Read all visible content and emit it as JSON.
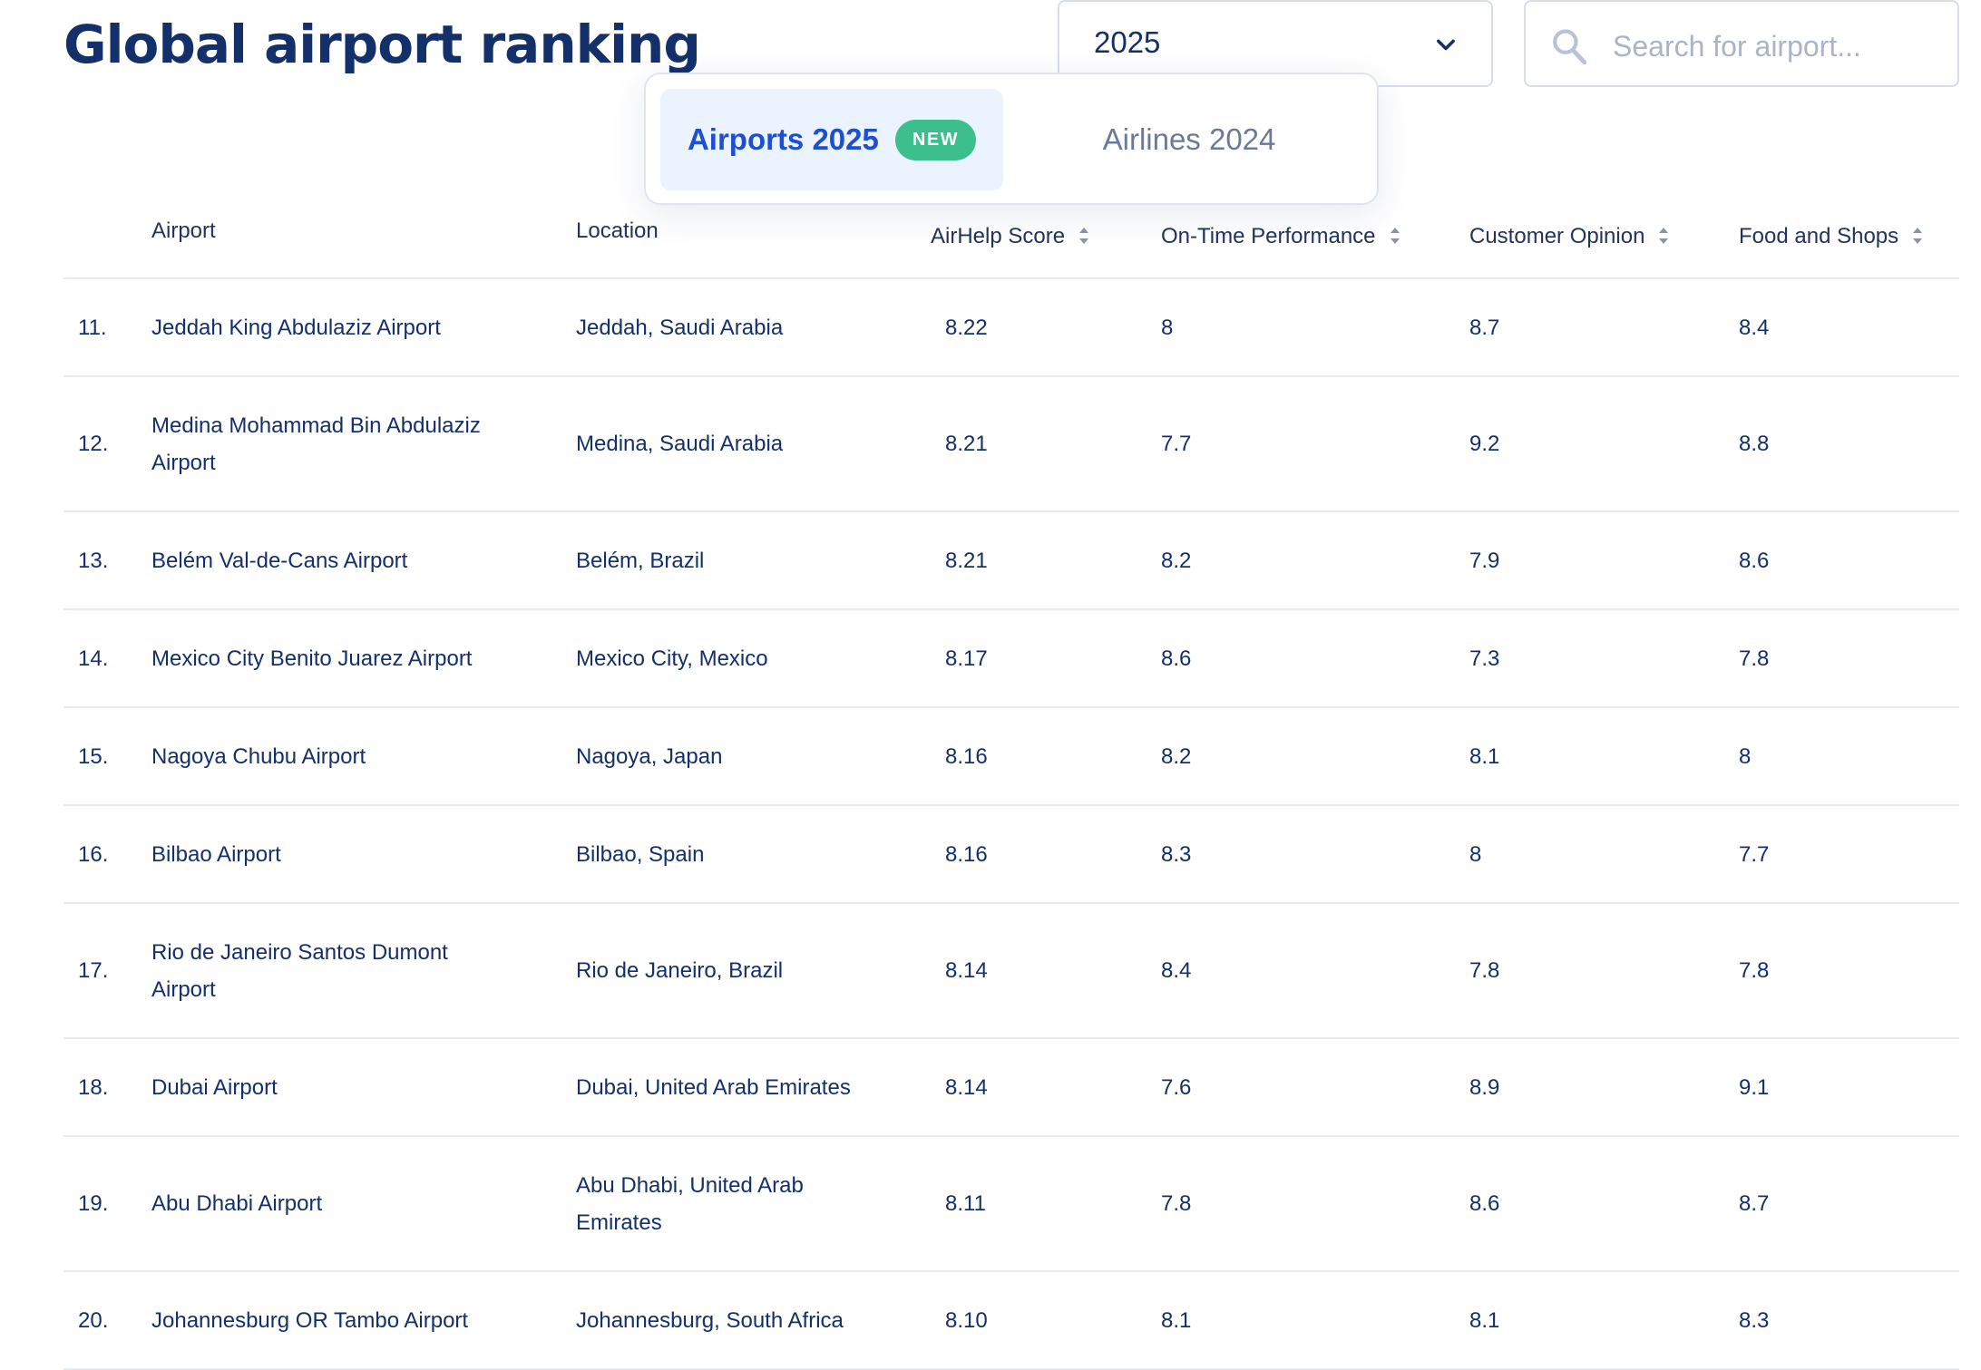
{
  "page": {
    "title": "Global airport ranking"
  },
  "year_select": {
    "value": "2025"
  },
  "search": {
    "placeholder": "Search for airport..."
  },
  "tabs": [
    {
      "label": "Airports 2025",
      "badge": "NEW",
      "active": true
    },
    {
      "label": "Airlines 2024",
      "active": false
    }
  ],
  "table": {
    "columns": [
      "Airport",
      "Location",
      "AirHelp Score",
      "On-Time Performance",
      "Customer Opinion",
      "Food and Shops"
    ],
    "rows": [
      {
        "rank": "11.",
        "airport": "Jeddah King Abdulaziz Airport",
        "location": "Jeddah, Saudi Arabia",
        "score": "8.22",
        "on_time": "8",
        "opinion": "8.7",
        "food": "8.4"
      },
      {
        "rank": "12.",
        "airport": "Medina Mohammad Bin Abdulaziz Airport",
        "location": "Medina, Saudi Arabia",
        "score": "8.21",
        "on_time": "7.7",
        "opinion": "9.2",
        "food": "8.8"
      },
      {
        "rank": "13.",
        "airport": "Belém Val-de-Cans Airport",
        "location": "Belém, Brazil",
        "score": "8.21",
        "on_time": "8.2",
        "opinion": "7.9",
        "food": "8.6"
      },
      {
        "rank": "14.",
        "airport": "Mexico City Benito Juarez Airport",
        "location": "Mexico City, Mexico",
        "score": "8.17",
        "on_time": "8.6",
        "opinion": "7.3",
        "food": "7.8"
      },
      {
        "rank": "15.",
        "airport": "Nagoya Chubu Airport",
        "location": "Nagoya, Japan",
        "score": "8.16",
        "on_time": "8.2",
        "opinion": "8.1",
        "food": "8"
      },
      {
        "rank": "16.",
        "airport": "Bilbao Airport",
        "location": "Bilbao, Spain",
        "score": "8.16",
        "on_time": "8.3",
        "opinion": "8",
        "food": "7.7"
      },
      {
        "rank": "17.",
        "airport": "Rio de Janeiro Santos Dumont Airport",
        "location": "Rio de Janeiro, Brazil",
        "score": "8.14",
        "on_time": "8.4",
        "opinion": "7.8",
        "food": "7.8"
      },
      {
        "rank": "18.",
        "airport": "Dubai Airport",
        "location": "Dubai, United Arab Emirates",
        "score": "8.14",
        "on_time": "7.6",
        "opinion": "8.9",
        "food": "9.1"
      },
      {
        "rank": "19.",
        "airport": "Abu Dhabi Airport",
        "location": "Abu Dhabi, United Arab Emirates",
        "score": "8.11",
        "on_time": "7.8",
        "opinion": "8.6",
        "food": "8.7"
      },
      {
        "rank": "20.",
        "airport": "Johannesburg OR Tambo Airport",
        "location": "Johannesburg, South Africa",
        "score": "8.10",
        "on_time": "8.1",
        "opinion": "8.1",
        "food": "8.3"
      }
    ]
  }
}
